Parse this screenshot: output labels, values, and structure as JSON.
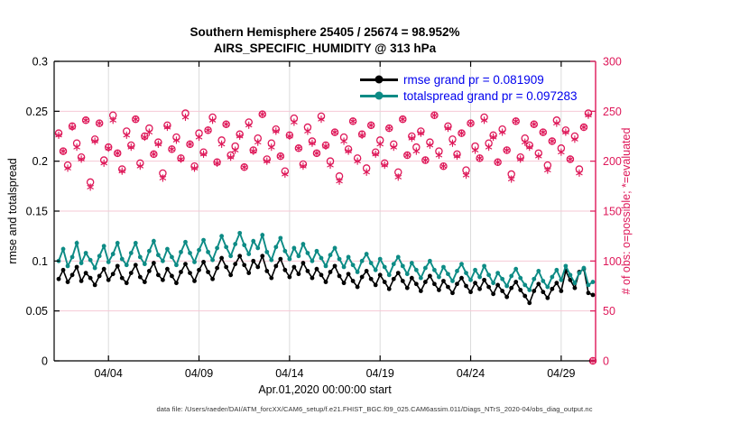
{
  "footer": {
    "text": "data file: /Users/raeder/DAI/ATM_forcXX/CAM6_setup/f.e21.FHIST_BGC.f09_025.CAM6assim.011/Diags_NTrS_2020-04/obs_diag_output.nc"
  },
  "chart_data": {
    "type": "line+scatter",
    "title": "Southern Hemisphere 25405 / 25674 = 98.952%",
    "subtitle": "AIRS_SPECIFIC_HUMIDITY @ 313 hPa",
    "legend_position": "top-right-inside",
    "legend_text_color": "#0000EE",
    "grid": {
      "h_color": "#F6C9D6",
      "v_color": "#DBDBDB"
    },
    "frame_color": "#000000",
    "x_axis": {
      "label": "Apr.01,2020 00:00:00 start",
      "range_days": [
        0,
        29.9
      ],
      "ticks": [
        {
          "day": 3,
          "label": "04/04"
        },
        {
          "day": 8,
          "label": "04/09"
        },
        {
          "day": 13,
          "label": "04/14"
        },
        {
          "day": 18,
          "label": "04/19"
        },
        {
          "day": 23,
          "label": "04/24"
        },
        {
          "day": 28,
          "label": "04/29"
        }
      ]
    },
    "left_axis": {
      "label": "rmse and totalspread",
      "range": [
        0,
        0.3
      ],
      "color": "#000000",
      "ticks": [
        {
          "v": 0,
          "label": "0"
        },
        {
          "v": 0.05,
          "label": "0.05"
        },
        {
          "v": 0.1,
          "label": "0.1"
        },
        {
          "v": 0.15,
          "label": "0.15"
        },
        {
          "v": 0.2,
          "label": "0.2"
        },
        {
          "v": 0.25,
          "label": "0.25"
        },
        {
          "v": 0.3,
          "label": "0.3"
        }
      ]
    },
    "right_axis": {
      "label": "# of obs: o=possible; *=evaluated",
      "range": [
        0,
        300
      ],
      "color": "#DE1859",
      "ticks": [
        {
          "v": 0,
          "label": "0"
        },
        {
          "v": 50,
          "label": "50"
        },
        {
          "v": 100,
          "label": "100"
        },
        {
          "v": 150,
          "label": "150"
        },
        {
          "v": 200,
          "label": "200"
        },
        {
          "v": 250,
          "label": "250"
        },
        {
          "v": 300,
          "label": "300"
        }
      ]
    },
    "time": {
      "start": "2020-04-01 06:00",
      "step_hours": 6,
      "n_points": 119
    },
    "series": [
      {
        "name": "rmse",
        "legend": "rmse grand pr = 0.081909",
        "color": "#000000",
        "axis": "left",
        "values": [
          0.082,
          0.091,
          0.079,
          0.086,
          0.094,
          0.08,
          0.088,
          0.083,
          0.076,
          0.085,
          0.092,
          0.081,
          0.087,
          0.095,
          0.083,
          0.078,
          0.088,
          0.096,
          0.084,
          0.079,
          0.09,
          0.098,
          0.086,
          0.081,
          0.092,
          0.085,
          0.078,
          0.089,
          0.097,
          0.088,
          0.08,
          0.091,
          0.099,
          0.089,
          0.082,
          0.093,
          0.103,
          0.094,
          0.086,
          0.097,
          0.105,
          0.096,
          0.088,
          0.1,
          0.094,
          0.105,
          0.09,
          0.083,
          0.095,
          0.102,
          0.091,
          0.084,
          0.094,
          0.087,
          0.098,
          0.09,
          0.083,
          0.092,
          0.086,
          0.079,
          0.089,
          0.095,
          0.085,
          0.078,
          0.087,
          0.08,
          0.074,
          0.084,
          0.09,
          0.082,
          0.076,
          0.086,
          0.079,
          0.072,
          0.082,
          0.088,
          0.08,
          0.073,
          0.083,
          0.077,
          0.07,
          0.079,
          0.085,
          0.077,
          0.071,
          0.08,
          0.074,
          0.068,
          0.077,
          0.083,
          0.075,
          0.069,
          0.078,
          0.072,
          0.081,
          0.074,
          0.067,
          0.076,
          0.07,
          0.064,
          0.073,
          0.079,
          0.071,
          0.065,
          0.058,
          0.07,
          0.077,
          0.069,
          0.063,
          0.072,
          0.078,
          0.07,
          0.09,
          0.081,
          0.073,
          0.089,
          0.092,
          0.068,
          0.066
        ]
      },
      {
        "name": "totalspread",
        "legend": "totalspread grand pr = 0.097283",
        "color": "#0D8B85",
        "axis": "left",
        "values": [
          0.1,
          0.112,
          0.095,
          0.104,
          0.118,
          0.098,
          0.108,
          0.101,
          0.093,
          0.105,
          0.115,
          0.099,
          0.107,
          0.118,
          0.102,
          0.096,
          0.108,
          0.118,
          0.104,
          0.097,
          0.11,
          0.12,
          0.106,
          0.1,
          0.112,
          0.104,
          0.096,
          0.109,
          0.119,
          0.108,
          0.099,
          0.111,
          0.121,
          0.109,
          0.101,
          0.113,
          0.125,
          0.114,
          0.105,
          0.117,
          0.128,
          0.116,
          0.107,
          0.12,
          0.113,
          0.126,
          0.109,
          0.101,
          0.114,
          0.123,
          0.11,
          0.102,
          0.113,
          0.105,
          0.117,
          0.108,
          0.1,
          0.11,
          0.103,
          0.095,
          0.106,
          0.113,
          0.102,
          0.094,
          0.104,
          0.096,
          0.089,
          0.1,
          0.107,
          0.098,
          0.091,
          0.102,
          0.094,
          0.086,
          0.097,
          0.104,
          0.095,
          0.087,
          0.098,
          0.091,
          0.083,
          0.093,
          0.1,
          0.091,
          0.084,
          0.094,
          0.087,
          0.08,
          0.09,
          0.097,
          0.088,
          0.081,
          0.091,
          0.084,
          0.095,
          0.086,
          0.078,
          0.088,
          0.082,
          0.075,
          0.085,
          0.092,
          0.083,
          0.076,
          0.071,
          0.082,
          0.09,
          0.08,
          0.074,
          0.084,
          0.091,
          0.081,
          0.095,
          0.086,
          0.078,
          0.088,
          0.093,
          0.076,
          0.079
        ]
      }
    ],
    "scatter": [
      {
        "name": "possible",
        "marker": "o",
        "color": "#DE1859",
        "axis": "right",
        "values": [
          228,
          210,
          196,
          235,
          218,
          204,
          241,
          179,
          222,
          238,
          201,
          214,
          246,
          208,
          192,
          230,
          216,
          242,
          198,
          225,
          233,
          207,
          219,
          188,
          236,
          212,
          224,
          203,
          248,
          217,
          195,
          228,
          209,
          231,
          244,
          199,
          221,
          237,
          206,
          215,
          227,
          194,
          239,
          211,
          223,
          247,
          202,
          218,
          232,
          205,
          190,
          226,
          243,
          213,
          197,
          234,
          220,
          208,
          245,
          216,
          200,
          229,
          185,
          224,
          212,
          240,
          203,
          227,
          193,
          236,
          209,
          221,
          198,
          233,
          217,
          189,
          242,
          206,
          225,
          214,
          230,
          201,
          219,
          246,
          210,
          195,
          235,
          222,
          207,
          228,
          191,
          238,
          215,
          203,
          244,
          218,
          226,
          199,
          232,
          211,
          187,
          240,
          204,
          223,
          216,
          237,
          208,
          229,
          196,
          220,
          241,
          213,
          231,
          202,
          225,
          192,
          234,
          248,
          0
        ]
      },
      {
        "name": "evaluated",
        "marker": "*",
        "color": "#DE1859",
        "axis": "right",
        "values": [
          226,
          210,
          193,
          234,
          214,
          202,
          241,
          174,
          220,
          238,
          198,
          213,
          241,
          208,
          190,
          226,
          214,
          242,
          195,
          224,
          229,
          207,
          217,
          183,
          234,
          212,
          221,
          202,
          244,
          217,
          193,
          224,
          207,
          231,
          241,
          198,
          217,
          237,
          204,
          211,
          225,
          194,
          236,
          210,
          219,
          247,
          200,
          214,
          230,
          205,
          187,
          225,
          239,
          213,
          195,
          230,
          218,
          208,
          242,
          215,
          196,
          229,
          180,
          220,
          210,
          240,
          200,
          226,
          189,
          236,
          207,
          217,
          196,
          233,
          214,
          184,
          242,
          206,
          223,
          210,
          228,
          201,
          216,
          246,
          206,
          195,
          233,
          218,
          205,
          228,
          186,
          238,
          211,
          203,
          241,
          214,
          224,
          199,
          229,
          211,
          182,
          240,
          202,
          219,
          214,
          237,
          205,
          229,
          191,
          220,
          238,
          209,
          229,
          202,
          222,
          188,
          234,
          246,
          0
        ]
      }
    ]
  }
}
